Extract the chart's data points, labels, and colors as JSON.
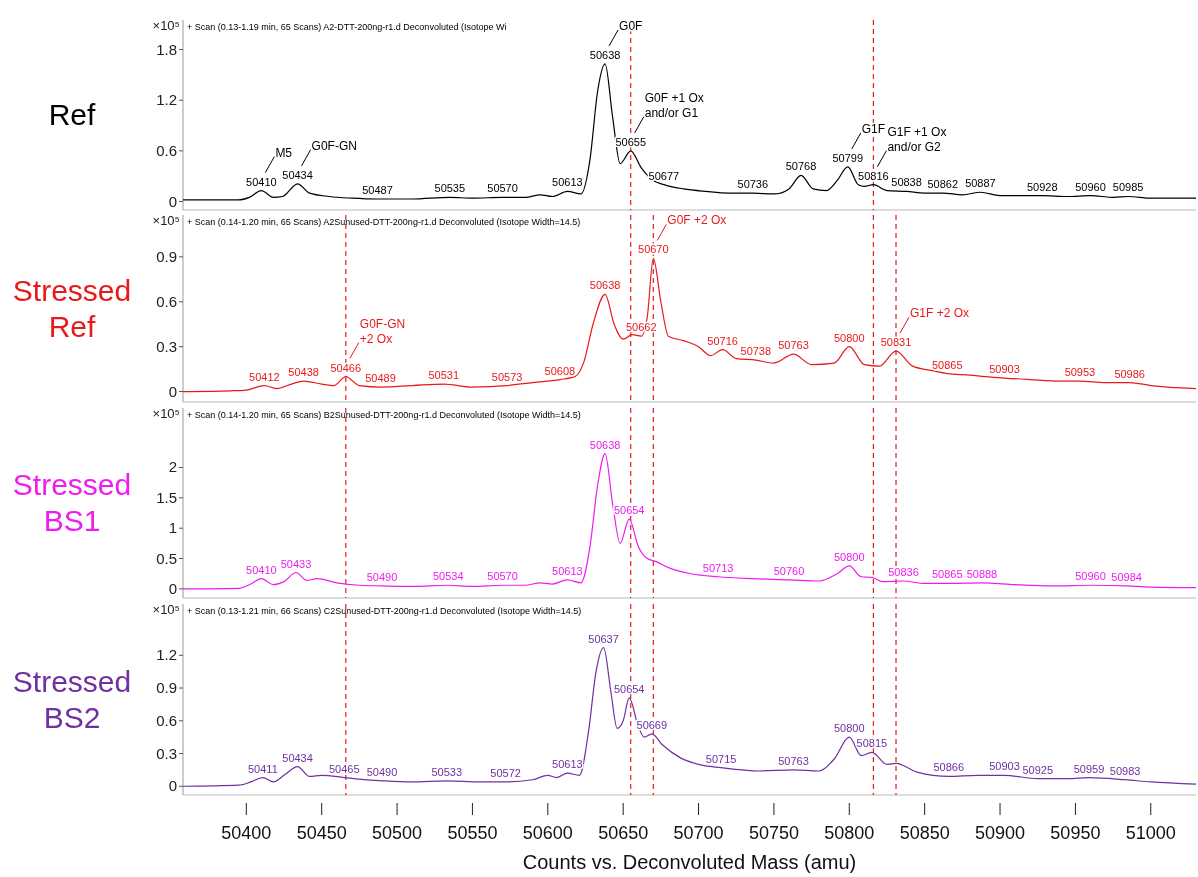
{
  "chart_data": [
    {
      "type": "line",
      "title": "Ref",
      "subtitle": "+ Scan (0.13-1.19 min, 65 Scans) A2-DTT-200ng-r1.d  Deconvoluted (Isotope Wi",
      "ylabel": "×10⁵",
      "x": [
        50358,
        50380,
        50395,
        50402,
        50410,
        50418,
        50424,
        50434,
        50442,
        50455,
        50470,
        50487,
        50510,
        50535,
        50550,
        50570,
        50585,
        50595,
        50603,
        50613,
        50622,
        50628,
        50633,
        50638,
        50643,
        50648,
        50655,
        50662,
        50670,
        50677,
        50690,
        50705,
        50720,
        50736,
        50750,
        50760,
        50768,
        50776,
        50785,
        50792,
        50799,
        50806,
        50810,
        50816,
        50825,
        50838,
        50850,
        50862,
        50875,
        50887,
        50900,
        50915,
        50928,
        50945,
        50960,
        50975,
        50985,
        51000,
        51030
      ],
      "series": [
        {
          "color": "#000000",
          "values": [
            0.02,
            0.02,
            0.02,
            0.05,
            0.13,
            0.05,
            0.06,
            0.21,
            0.1,
            0.06,
            0.04,
            0.03,
            0.03,
            0.05,
            0.04,
            0.05,
            0.05,
            0.08,
            0.06,
            0.12,
            0.09,
            0.5,
            1.3,
            1.63,
            1.0,
            0.45,
            0.6,
            0.4,
            0.25,
            0.2,
            0.15,
            0.12,
            0.1,
            0.1,
            0.09,
            0.15,
            0.31,
            0.15,
            0.13,
            0.25,
            0.41,
            0.2,
            0.18,
            0.2,
            0.13,
            0.12,
            0.1,
            0.1,
            0.08,
            0.11,
            0.07,
            0.07,
            0.07,
            0.06,
            0.07,
            0.05,
            0.06,
            0.04,
            0.04
          ]
        }
      ],
      "xlim": [
        50358,
        51030
      ],
      "ylim": [
        -0.1,
        2.15
      ],
      "yticks": [
        0,
        0.6,
        1.2,
        1.8
      ],
      "tick_labels": "y",
      "ref_lines": [
        {
          "axis": "x",
          "value": 50655,
          "color": "#e8191b",
          "line_style": "dashed"
        },
        {
          "axis": "x",
          "value": 50816,
          "color": "#e8191b",
          "line_style": "dashed"
        }
      ],
      "annotations": [
        {
          "text": "M5",
          "x": 50410,
          "y": 0.13
        },
        {
          "text": "50410",
          "x": 50410,
          "y": 0.13
        },
        {
          "text": "G0F-GN",
          "x": 50434,
          "y": 0.21
        },
        {
          "text": "50434",
          "x": 50434,
          "y": 0.21
        },
        {
          "text": "50487",
          "x": 50487,
          "y": 0.03
        },
        {
          "text": "50535",
          "x": 50535,
          "y": 0.05
        },
        {
          "text": "50570",
          "x": 50570,
          "y": 0.05
        },
        {
          "text": "50613",
          "x": 50613,
          "y": 0.12
        },
        {
          "text": "G0F",
          "x": 50638,
          "y": 1.63
        },
        {
          "text": "50638",
          "x": 50638,
          "y": 1.63
        },
        {
          "text": "G0F +1 Ox\nand/or G1",
          "x": 50655,
          "y": 0.6
        },
        {
          "text": "50655",
          "x": 50655,
          "y": 0.6
        },
        {
          "text": "50677",
          "x": 50677,
          "y": 0.2
        },
        {
          "text": "50736",
          "x": 50736,
          "y": 0.1
        },
        {
          "text": "50768",
          "x": 50768,
          "y": 0.31
        },
        {
          "text": "G1F",
          "x": 50799,
          "y": 0.41
        },
        {
          "text": "50799",
          "x": 50799,
          "y": 0.41
        },
        {
          "text": "G1F +1 Ox\nand/or G2",
          "x": 50816,
          "y": 0.2
        },
        {
          "text": "50816",
          "x": 50816,
          "y": 0.2
        },
        {
          "text": "50838",
          "x": 50838,
          "y": 0.12
        },
        {
          "text": "50862",
          "x": 50862,
          "y": 0.1
        },
        {
          "text": "50887",
          "x": 50887,
          "y": 0.11
        },
        {
          "text": "50928",
          "x": 50928,
          "y": 0.07
        },
        {
          "text": "50960",
          "x": 50960,
          "y": 0.07
        },
        {
          "text": "50985",
          "x": 50985,
          "y": 0.06
        }
      ]
    },
    {
      "type": "line",
      "title": "Stressed Ref",
      "subtitle": "+ Scan (0.14-1.20 min, 65 Scans) A2Sunused-DTT-200ng-r1.d  Deconvoluted (Isotope Width=14.5)",
      "ylabel": "×10⁵",
      "x": [
        50358,
        50390,
        50400,
        50412,
        50420,
        50430,
        50438,
        50450,
        50458,
        50466,
        50475,
        50489,
        50510,
        50531,
        50550,
        50573,
        50590,
        50608,
        50618,
        50624,
        50630,
        50638,
        50644,
        50650,
        50656,
        50662,
        50666,
        50670,
        50675,
        50680,
        50690,
        50700,
        50708,
        50716,
        50725,
        50738,
        50750,
        50763,
        50775,
        50790,
        50800,
        50810,
        50820,
        50831,
        50842,
        50855,
        50865,
        50880,
        50890,
        50903,
        50920,
        50940,
        50953,
        50970,
        50986,
        51000,
        51030
      ],
      "series": [
        {
          "color": "#e8191b",
          "values": [
            0,
            0.005,
            0.01,
            0.04,
            0.02,
            0.05,
            0.07,
            0.05,
            0.04,
            0.1,
            0.04,
            0.03,
            0.04,
            0.05,
            0.03,
            0.04,
            0.06,
            0.08,
            0.1,
            0.2,
            0.45,
            0.65,
            0.45,
            0.35,
            0.38,
            0.37,
            0.5,
            0.89,
            0.6,
            0.37,
            0.34,
            0.3,
            0.24,
            0.28,
            0.22,
            0.21,
            0.19,
            0.25,
            0.18,
            0.19,
            0.3,
            0.18,
            0.17,
            0.27,
            0.17,
            0.14,
            0.12,
            0.11,
            0.1,
            0.09,
            0.08,
            0.07,
            0.07,
            0.06,
            0.06,
            0.04,
            0.02
          ]
        }
      ],
      "xlim": [
        50358,
        51030
      ],
      "ylim": [
        -0.07,
        1.18
      ],
      "yticks": [
        0,
        0.3,
        0.6,
        0.9
      ],
      "tick_labels": "y",
      "ref_lines": [
        {
          "axis": "x",
          "value": 50466,
          "color": "#e8191b",
          "line_style": "dashed"
        },
        {
          "axis": "x",
          "value": 50655,
          "color": "#e8191b",
          "line_style": "dashed"
        },
        {
          "axis": "x",
          "value": 50670,
          "color": "#e8191b",
          "line_style": "dashed"
        },
        {
          "axis": "x",
          "value": 50816,
          "color": "#e8191b",
          "line_style": "dashed"
        },
        {
          "axis": "x",
          "value": 50831,
          "color": "#e8191b",
          "line_style": "dashed"
        }
      ],
      "annotations": [
        {
          "text": "50412",
          "x": 50412,
          "y": 0.04
        },
        {
          "text": "50438",
          "x": 50438,
          "y": 0.07
        },
        {
          "text": "G0F-GN\n+2 Ox",
          "x": 50466,
          "y": 0.1
        },
        {
          "text": "50466",
          "x": 50466,
          "y": 0.1
        },
        {
          "text": "50489",
          "x": 50489,
          "y": 0.03
        },
        {
          "text": "50531",
          "x": 50531,
          "y": 0.05
        },
        {
          "text": "50573",
          "x": 50573,
          "y": 0.04
        },
        {
          "text": "50608",
          "x": 50608,
          "y": 0.08
        },
        {
          "text": "50638",
          "x": 50638,
          "y": 0.65
        },
        {
          "text": "50662",
          "x": 50662,
          "y": 0.37
        },
        {
          "text": "G0F +2 Ox",
          "x": 50670,
          "y": 0.89
        },
        {
          "text": "50670",
          "x": 50670,
          "y": 0.89
        },
        {
          "text": "50716",
          "x": 50716,
          "y": 0.28
        },
        {
          "text": "50738",
          "x": 50738,
          "y": 0.21
        },
        {
          "text": "50763",
          "x": 50763,
          "y": 0.25
        },
        {
          "text": "50800",
          "x": 50800,
          "y": 0.3
        },
        {
          "text": "G1F +2 Ox",
          "x": 50831,
          "y": 0.27
        },
        {
          "text": "50831",
          "x": 50831,
          "y": 0.27
        },
        {
          "text": "50865",
          "x": 50865,
          "y": 0.12
        },
        {
          "text": "50903",
          "x": 50903,
          "y": 0.09
        },
        {
          "text": "50953",
          "x": 50953,
          "y": 0.07
        },
        {
          "text": "50986",
          "x": 50986,
          "y": 0.06
        }
      ]
    },
    {
      "type": "line",
      "title": "Stressed BS1",
      "subtitle": "+ Scan (0.14-1.20 min, 65 Scans) B2Sunused-DTT-200ng-r1.d  Deconvoluted (Isotope Width=14.5)",
      "ylabel": "×10⁵",
      "x": [
        50358,
        50395,
        50403,
        50410,
        50418,
        50425,
        50433,
        50440,
        50447,
        50460,
        50475,
        50490,
        50510,
        50534,
        50550,
        50570,
        50585,
        50595,
        50603,
        50613,
        50622,
        50628,
        50633,
        50638,
        50643,
        50648,
        50654,
        50660,
        50666,
        50672,
        50680,
        50695,
        50713,
        50735,
        50760,
        50780,
        50792,
        50800,
        50808,
        50815,
        50822,
        50836,
        50850,
        50865,
        50888,
        50910,
        50935,
        50960,
        50984,
        51000,
        51030
      ],
      "series": [
        {
          "color": "#ee1cee",
          "values": [
            0,
            0.01,
            0.08,
            0.17,
            0.07,
            0.12,
            0.27,
            0.14,
            0.17,
            0.1,
            0.06,
            0.05,
            0.04,
            0.06,
            0.04,
            0.06,
            0.06,
            0.1,
            0.08,
            0.15,
            0.1,
            0.7,
            1.7,
            2.23,
            1.4,
            0.75,
            1.15,
            0.7,
            0.5,
            0.45,
            0.35,
            0.25,
            0.2,
            0.17,
            0.15,
            0.13,
            0.25,
            0.38,
            0.2,
            0.19,
            0.12,
            0.13,
            0.09,
            0.09,
            0.1,
            0.07,
            0.05,
            0.06,
            0.05,
            0.03,
            0.02
          ]
        }
      ],
      "xlim": [
        50358,
        51030
      ],
      "ylim": [
        -0.15,
        2.98
      ],
      "yticks": [
        0,
        0.5,
        1,
        1.5,
        2
      ],
      "tick_labels": "y",
      "ref_lines": [
        {
          "axis": "x",
          "value": 50466,
          "color": "#e8191b",
          "line_style": "dashed"
        },
        {
          "axis": "x",
          "value": 50655,
          "color": "#e8191b",
          "line_style": "dashed"
        },
        {
          "axis": "x",
          "value": 50670,
          "color": "#e8191b",
          "line_style": "dashed"
        },
        {
          "axis": "x",
          "value": 50816,
          "color": "#e8191b",
          "line_style": "dashed"
        },
        {
          "axis": "x",
          "value": 50831,
          "color": "#e8191b",
          "line_style": "dashed"
        }
      ],
      "annotations": [
        {
          "text": "50410",
          "x": 50410,
          "y": 0.17
        },
        {
          "text": "50433",
          "x": 50433,
          "y": 0.27
        },
        {
          "text": "50490",
          "x": 50490,
          "y": 0.05
        },
        {
          "text": "50534",
          "x": 50534,
          "y": 0.06
        },
        {
          "text": "50570",
          "x": 50570,
          "y": 0.06
        },
        {
          "text": "50613",
          "x": 50613,
          "y": 0.15
        },
        {
          "text": "50638",
          "x": 50638,
          "y": 2.23
        },
        {
          "text": "50654",
          "x": 50654,
          "y": 1.15
        },
        {
          "text": "50713",
          "x": 50713,
          "y": 0.2
        },
        {
          "text": "50760",
          "x": 50760,
          "y": 0.15
        },
        {
          "text": "50800",
          "x": 50800,
          "y": 0.38
        },
        {
          "text": "50836",
          "x": 50836,
          "y": 0.13
        },
        {
          "text": "50865",
          "x": 50865,
          "y": 0.09
        },
        {
          "text": "50888",
          "x": 50888,
          "y": 0.1
        },
        {
          "text": "50960",
          "x": 50960,
          "y": 0.06
        },
        {
          "text": "50984",
          "x": 50984,
          "y": 0.05
        }
      ]
    },
    {
      "type": "line",
      "title": "Stressed BS2",
      "subtitle": "+ Scan (0.13-1.21 min, 66 Scans) C2Sunused-DTT-200ng-r1.d  Deconvoluted (Isotope Width=14.5)",
      "ylabel": "×10⁵",
      "xlabel": "Counts vs. Deconvoluted Mass (amu)",
      "x": [
        50358,
        50395,
        50403,
        50411,
        50418,
        50425,
        50434,
        50442,
        50450,
        50465,
        50478,
        50490,
        50510,
        50533,
        50555,
        50572,
        50590,
        50600,
        50606,
        50613,
        50621,
        50627,
        50632,
        50637,
        50642,
        50646,
        50650,
        50654,
        50660,
        50664,
        50669,
        50676,
        50688,
        50700,
        50715,
        50740,
        50763,
        50780,
        50790,
        50800,
        50808,
        50815,
        50825,
        50831,
        50845,
        50866,
        50885,
        50903,
        50925,
        50945,
        50959,
        50983,
        51000,
        51030
      ],
      "series": [
        {
          "color": "#7030a0",
          "values": [
            0,
            0.01,
            0.04,
            0.08,
            0.04,
            0.1,
            0.18,
            0.09,
            0.1,
            0.08,
            0.06,
            0.05,
            0.04,
            0.05,
            0.04,
            0.04,
            0.06,
            0.1,
            0.08,
            0.12,
            0.1,
            0.5,
            1.05,
            1.27,
            0.85,
            0.53,
            0.6,
            0.81,
            0.55,
            0.45,
            0.48,
            0.38,
            0.26,
            0.2,
            0.17,
            0.14,
            0.15,
            0.14,
            0.25,
            0.45,
            0.28,
            0.31,
            0.2,
            0.21,
            0.13,
            0.09,
            0.1,
            0.1,
            0.07,
            0.07,
            0.08,
            0.06,
            0.04,
            0.02
          ]
        }
      ],
      "xlim": [
        50358,
        51030
      ],
      "ylim": [
        -0.08,
        1.67
      ],
      "yticks": [
        0,
        0.3,
        0.6,
        0.9,
        1.2
      ],
      "xticks": [
        50400,
        50450,
        50500,
        50550,
        50600,
        50650,
        50700,
        50750,
        50800,
        50850,
        50900,
        50950,
        51000
      ],
      "ref_lines": [
        {
          "axis": "x",
          "value": 50466,
          "color": "#e8191b",
          "line_style": "dashed"
        },
        {
          "axis": "x",
          "value": 50655,
          "color": "#e8191b",
          "line_style": "dashed"
        },
        {
          "axis": "x",
          "value": 50670,
          "color": "#e8191b",
          "line_style": "dashed"
        },
        {
          "axis": "x",
          "value": 50816,
          "color": "#e8191b",
          "line_style": "dashed"
        },
        {
          "axis": "x",
          "value": 50831,
          "color": "#e8191b",
          "line_style": "dashed"
        }
      ],
      "annotations": [
        {
          "text": "50411",
          "x": 50411,
          "y": 0.08
        },
        {
          "text": "50434",
          "x": 50434,
          "y": 0.18
        },
        {
          "text": "50465",
          "x": 50465,
          "y": 0.08
        },
        {
          "text": "50490",
          "x": 50490,
          "y": 0.05
        },
        {
          "text": "50533",
          "x": 50533,
          "y": 0.05
        },
        {
          "text": "50572",
          "x": 50572,
          "y": 0.04
        },
        {
          "text": "50613",
          "x": 50613,
          "y": 0.12
        },
        {
          "text": "50637",
          "x": 50637,
          "y": 1.27
        },
        {
          "text": "50654",
          "x": 50654,
          "y": 0.81
        },
        {
          "text": "50669",
          "x": 50669,
          "y": 0.48
        },
        {
          "text": "50715",
          "x": 50715,
          "y": 0.17
        },
        {
          "text": "50763",
          "x": 50763,
          "y": 0.15
        },
        {
          "text": "50800",
          "x": 50800,
          "y": 0.45
        },
        {
          "text": "50815",
          "x": 50815,
          "y": 0.31
        },
        {
          "text": "50866",
          "x": 50866,
          "y": 0.09
        },
        {
          "text": "50903",
          "x": 50903,
          "y": 0.1
        },
        {
          "text": "50925",
          "x": 50925,
          "y": 0.07
        },
        {
          "text": "50959",
          "x": 50959,
          "y": 0.08
        },
        {
          "text": "50983",
          "x": 50983,
          "y": 0.06
        }
      ]
    }
  ]
}
